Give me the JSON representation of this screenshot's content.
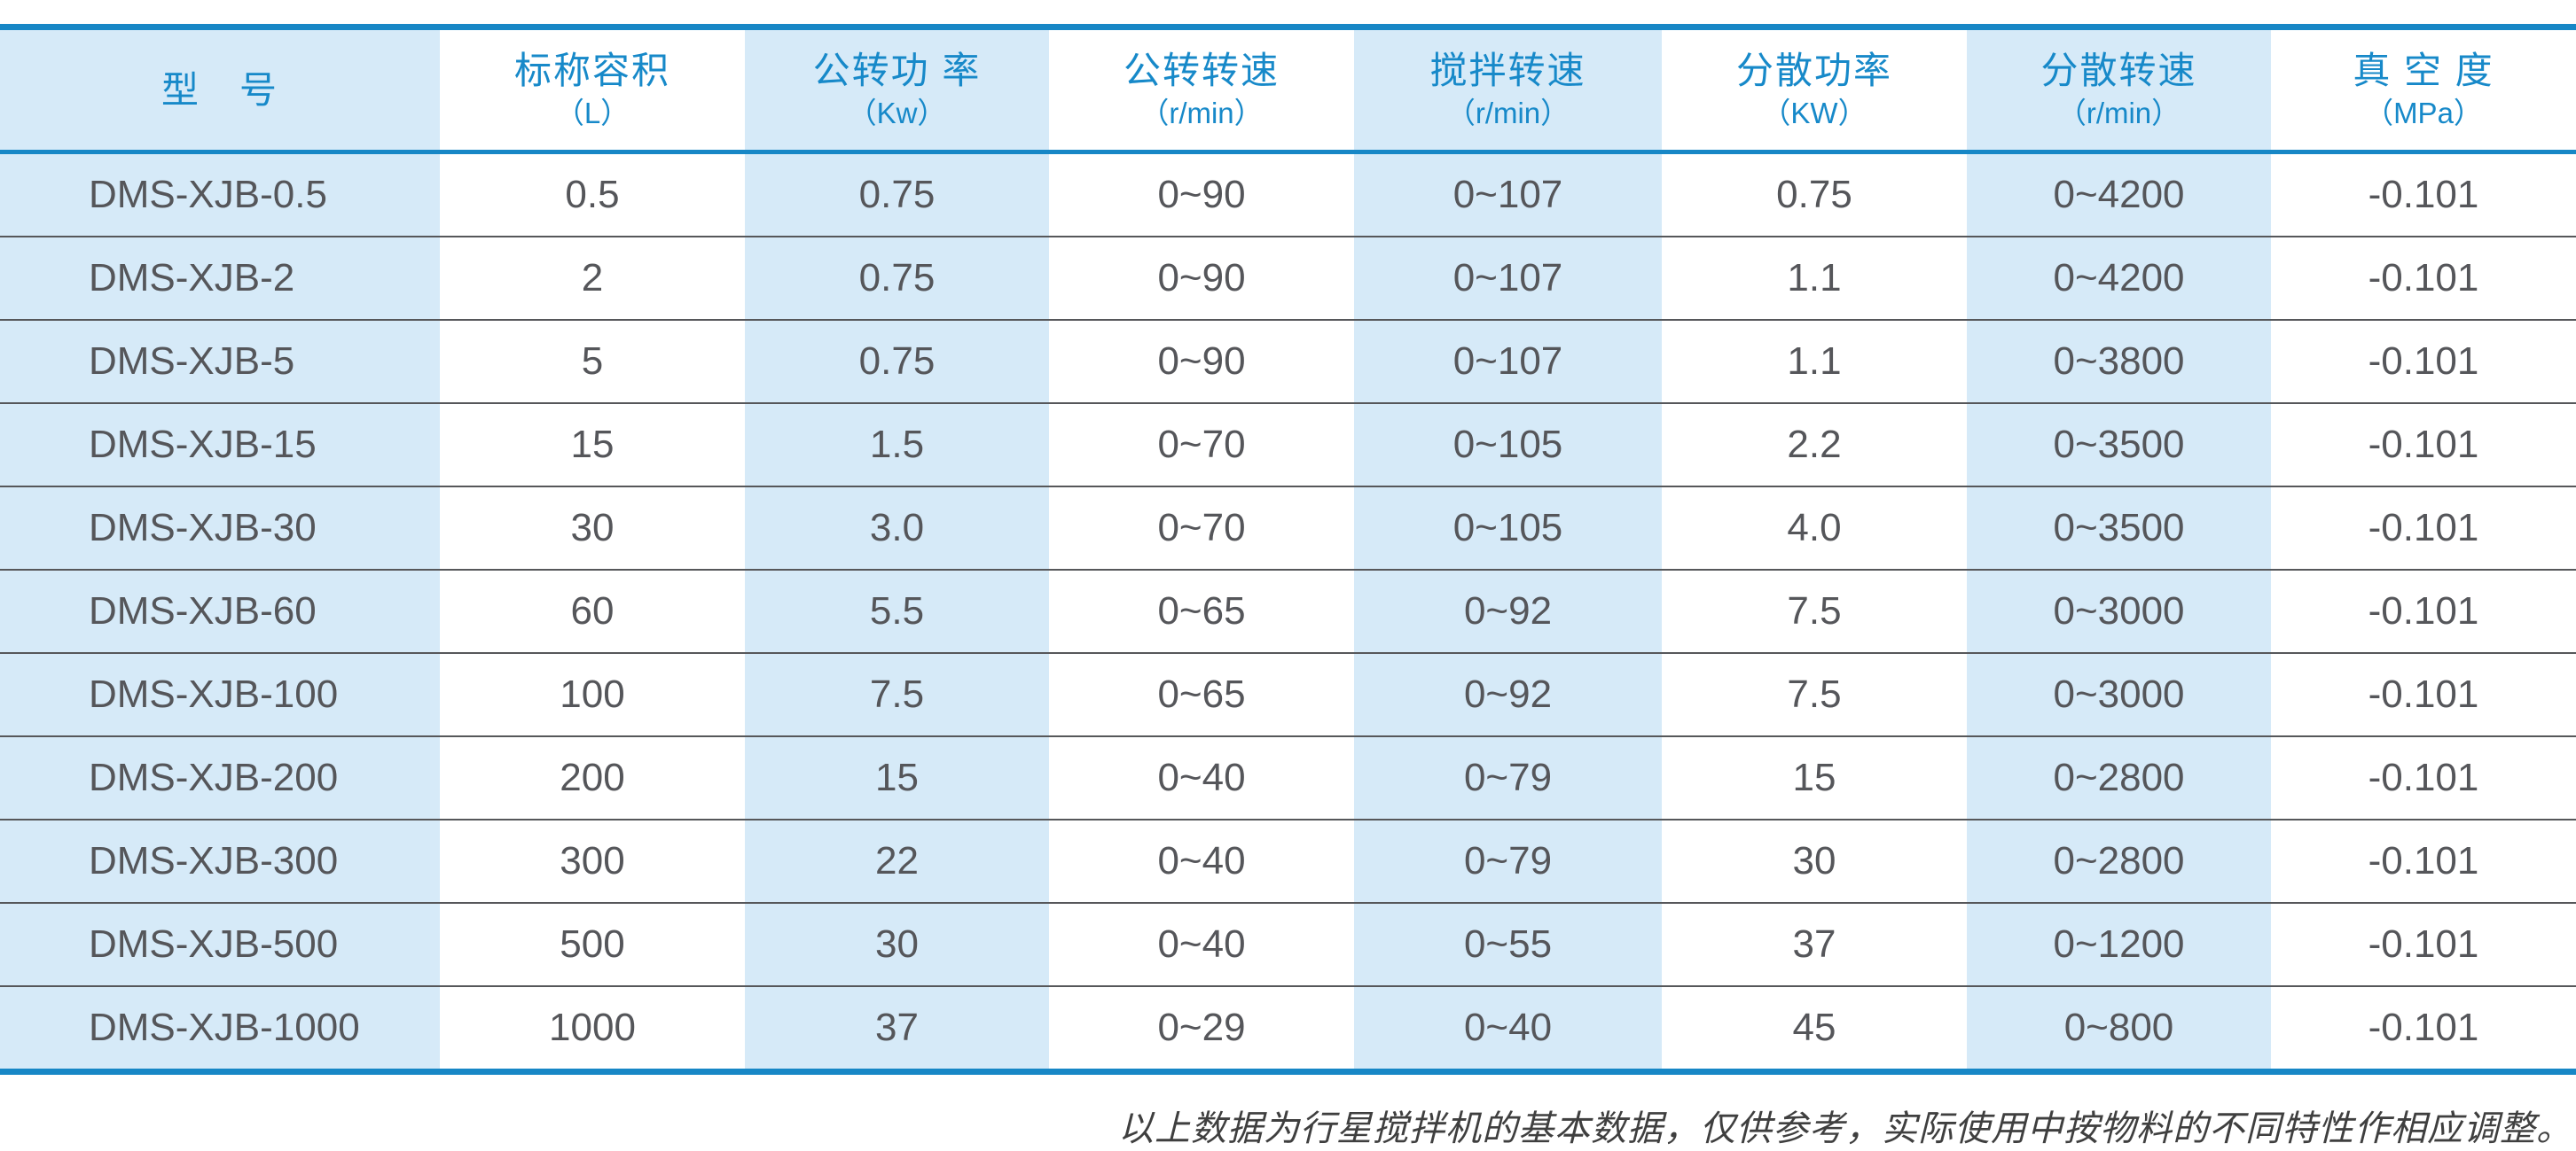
{
  "colors": {
    "accent": "#1787c6",
    "header-text": "#1789c9",
    "stripe": "#d6eaf8",
    "body-text": "#55565a",
    "separator": "#56575a",
    "footer-text": "#3f3f3f"
  },
  "table": {
    "columns": [
      {
        "label": "型　号",
        "unit": ""
      },
      {
        "label": "标称容积",
        "unit": "（L）"
      },
      {
        "label": "公转功 率",
        "unit": "（Kw）"
      },
      {
        "label": "公转转速",
        "unit": "（r/min）"
      },
      {
        "label": "搅拌转速",
        "unit": "（r/min）"
      },
      {
        "label": "分散功率",
        "unit": "（KW）"
      },
      {
        "label": "分散转速",
        "unit": "（r/min）"
      },
      {
        "label": "真 空 度",
        "unit": "（MPa）"
      }
    ],
    "rows": [
      [
        "DMS-XJB-0.5",
        "0.5",
        "0.75",
        "0~90",
        "0~107",
        "0.75",
        "0~4200",
        "-0.101"
      ],
      [
        "DMS-XJB-2",
        "2",
        "0.75",
        "0~90",
        "0~107",
        "1.1",
        "0~4200",
        "-0.101"
      ],
      [
        "DMS-XJB-5",
        "5",
        "0.75",
        "0~90",
        "0~107",
        "1.1",
        "0~3800",
        "-0.101"
      ],
      [
        "DMS-XJB-15",
        "15",
        "1.5",
        "0~70",
        "0~105",
        "2.2",
        "0~3500",
        "-0.101"
      ],
      [
        "DMS-XJB-30",
        "30",
        "3.0",
        "0~70",
        "0~105",
        "4.0",
        "0~3500",
        "-0.101"
      ],
      [
        "DMS-XJB-60",
        "60",
        "5.5",
        "0~65",
        "0~92",
        "7.5",
        "0~3000",
        "-0.101"
      ],
      [
        "DMS-XJB-100",
        "100",
        "7.5",
        "0~65",
        "0~92",
        "7.5",
        "0~3000",
        "-0.101"
      ],
      [
        "DMS-XJB-200",
        "200",
        "15",
        "0~40",
        "0~79",
        "15",
        "0~2800",
        "-0.101"
      ],
      [
        "DMS-XJB-300",
        "300",
        "22",
        "0~40",
        "0~79",
        "30",
        "0~2800",
        "-0.101"
      ],
      [
        "DMS-XJB-500",
        "500",
        "30",
        "0~40",
        "0~55",
        "37",
        "0~1200",
        "-0.101"
      ],
      [
        "DMS-XJB-1000",
        "1000",
        "37",
        "0~29",
        "0~40",
        "45",
        "0~800",
        "-0.101"
      ]
    ]
  },
  "footer": {
    "note": "以上数据为行星搅拌机的基本数据，仅供参考，实际使用中按物料的不同特性作相应调整。"
  }
}
